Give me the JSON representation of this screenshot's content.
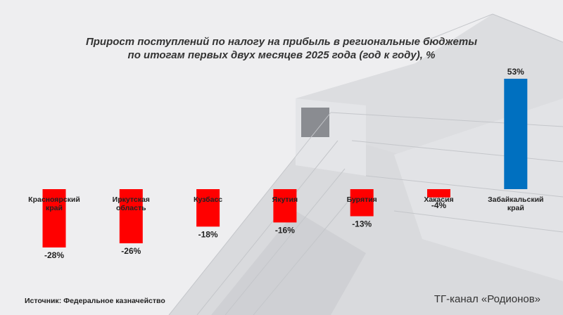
{
  "chart_data": {
    "type": "bar",
    "title_lines": [
      "Прирост поступлений по налогу на прибыль в региональные бюджеты",
      "по итогам первых двух месяцев 2025 года (год к году), %"
    ],
    "categories": [
      [
        "Красноярский",
        "край"
      ],
      [
        "Иркутская",
        "область"
      ],
      [
        "Кузбасс"
      ],
      [
        "Якутия"
      ],
      [
        "Бурятия"
      ],
      [
        "Хакасия"
      ],
      [
        "Забайкальский",
        "край"
      ]
    ],
    "values": [
      -28,
      -26,
      -18,
      -16,
      -13,
      -4,
      53
    ],
    "value_labels": [
      "-28%",
      "-26%",
      "-18%",
      "-16%",
      "-13%",
      "-4%",
      "53%"
    ],
    "colors": {
      "negative": "#ff0000",
      "positive": "#0070c0"
    },
    "ylim": [
      -28,
      53
    ],
    "grid": false,
    "legend": "none"
  },
  "footer": {
    "source": "Источник: Федеральное казначейство",
    "channel": "ТГ-канал «Родионов»"
  }
}
